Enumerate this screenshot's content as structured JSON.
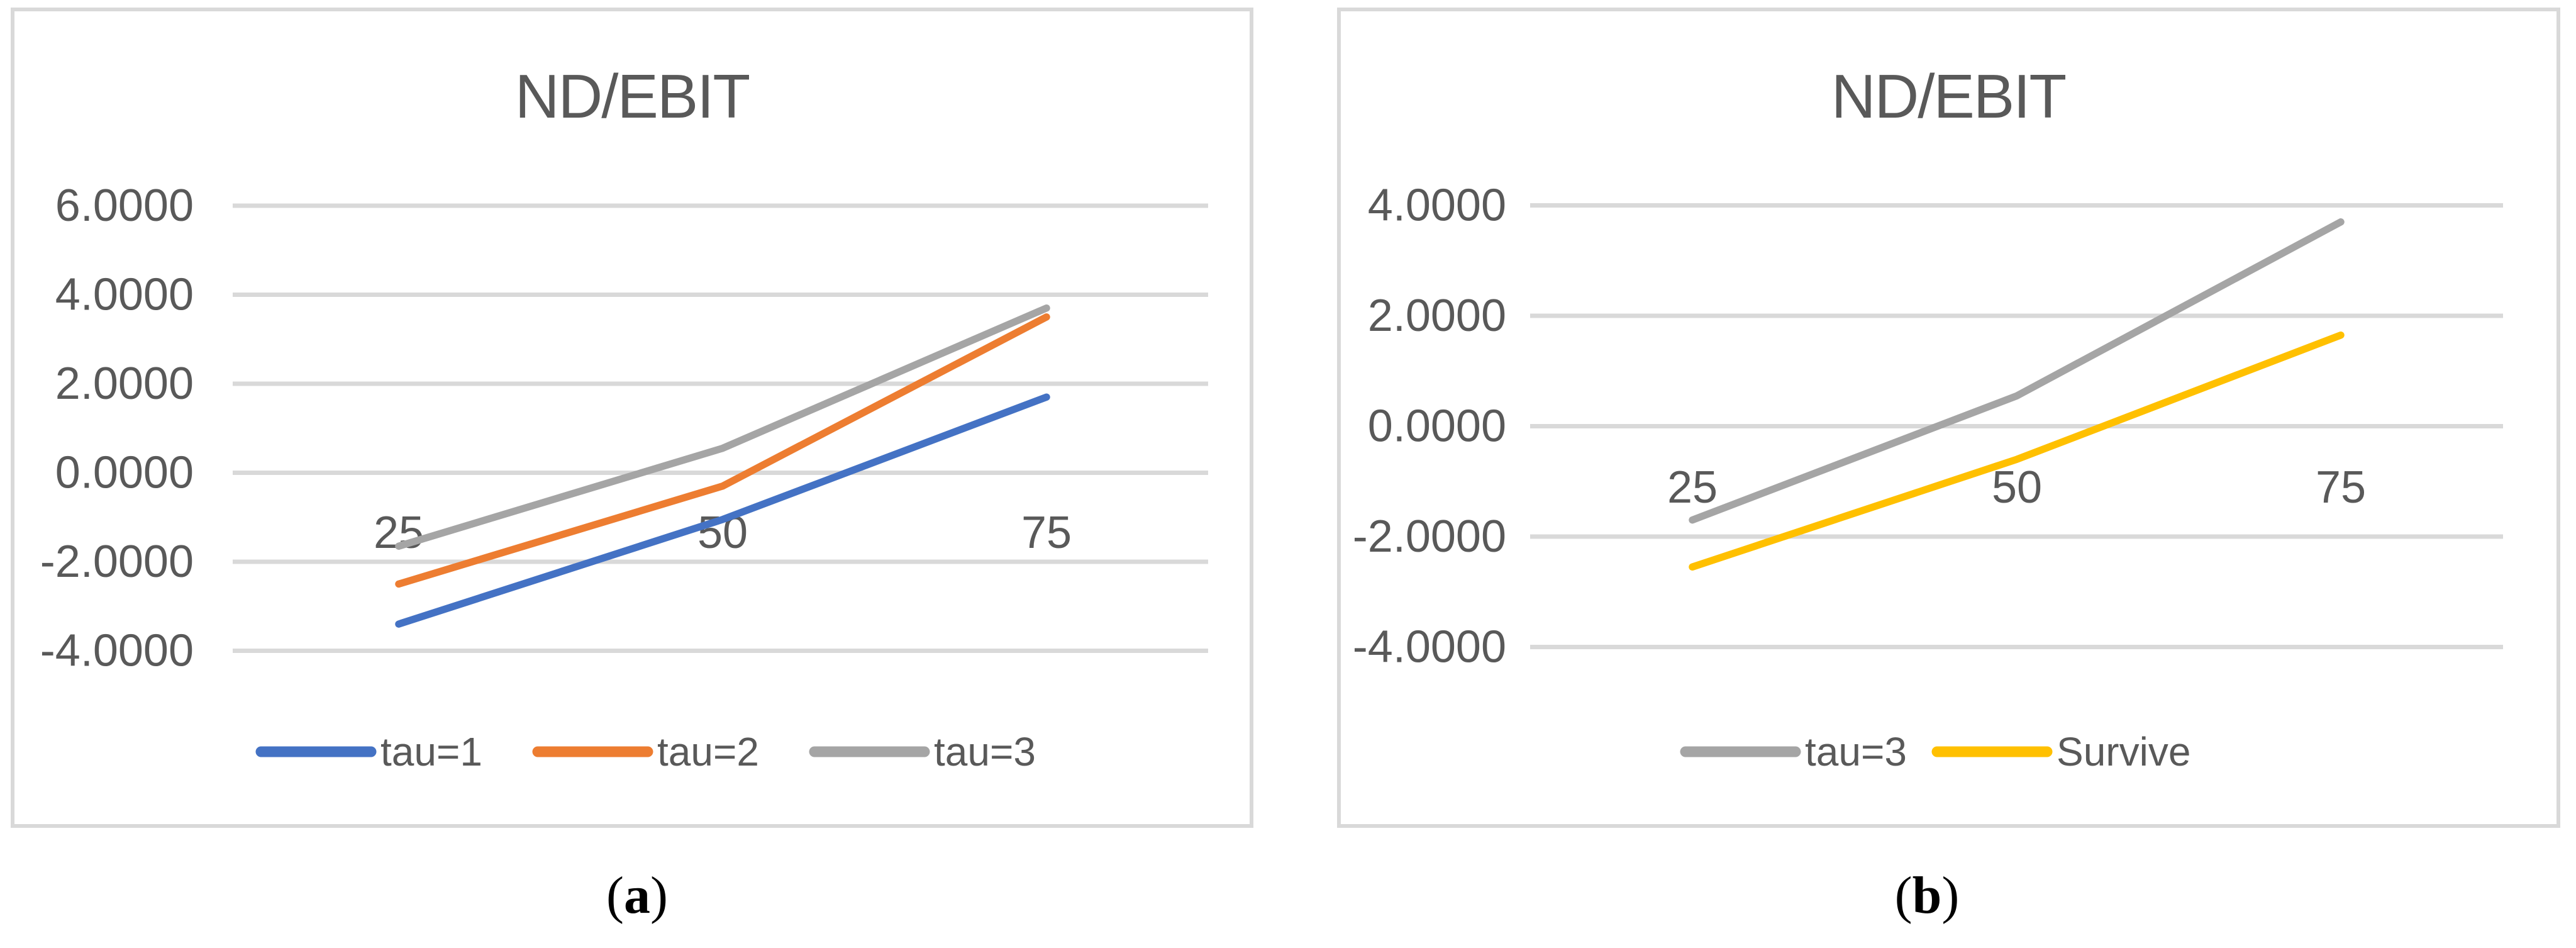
{
  "page": {
    "background": "#ffffff"
  },
  "colors": {
    "series_blue": "#4472C4",
    "series_orange": "#ED7D31",
    "series_gray": "#A5A5A5",
    "series_yellow": "#FFC000",
    "axis_text": "#595959",
    "title_text": "#595959",
    "gridline": "#D9D9D9",
    "chart_border": "#D9D9D9",
    "caption_text": "#000000"
  },
  "captions": [
    {
      "open": "(",
      "letter": "a",
      "close": ")"
    },
    {
      "open": "(",
      "letter": "b",
      "close": ")"
    }
  ],
  "chart_data": [
    {
      "type": "line",
      "title": "ND/EBIT",
      "categories": [
        25,
        50,
        75
      ],
      "xtick_labels": [
        "25",
        "50",
        "75"
      ],
      "series": [
        {
          "name": "tau=1",
          "color": "#4472C4",
          "values": [
            -3.4,
            -1.05,
            1.7
          ]
        },
        {
          "name": "tau=2",
          "color": "#ED7D31",
          "values": [
            -2.5,
            -0.3,
            3.5
          ]
        },
        {
          "name": "tau=3",
          "color": "#A5A5A5",
          "values": [
            -1.65,
            0.55,
            3.7
          ]
        }
      ],
      "ylim": [
        -4,
        6
      ],
      "yticks": [
        {
          "v": 6,
          "label": "6.0000"
        },
        {
          "v": 4,
          "label": "4.0000"
        },
        {
          "v": 2,
          "label": "2.0000"
        },
        {
          "v": 0,
          "label": "0.0000"
        },
        {
          "v": -2,
          "label": "-2.0000"
        },
        {
          "v": -4,
          "label": "-4.0000"
        }
      ],
      "grid": true,
      "legend_position": "bottom"
    },
    {
      "type": "line",
      "title": "ND/EBIT",
      "categories": [
        25,
        50,
        75
      ],
      "xtick_labels": [
        "25",
        "50",
        "75"
      ],
      "series": [
        {
          "name": "tau=3",
          "color": "#A5A5A5",
          "values": [
            -1.7,
            0.55,
            3.7
          ]
        },
        {
          "name": "Survive",
          "color": "#FFC000",
          "values": [
            -2.55,
            -0.6,
            1.65
          ]
        }
      ],
      "ylim": [
        -4,
        4
      ],
      "yticks": [
        {
          "v": 4,
          "label": "4.0000"
        },
        {
          "v": 2,
          "label": "2.0000"
        },
        {
          "v": 0,
          "label": "0.0000"
        },
        {
          "v": -2,
          "label": "-2.0000"
        },
        {
          "v": -4,
          "label": "-4.0000"
        }
      ],
      "grid": true,
      "legend_position": "bottom"
    }
  ]
}
